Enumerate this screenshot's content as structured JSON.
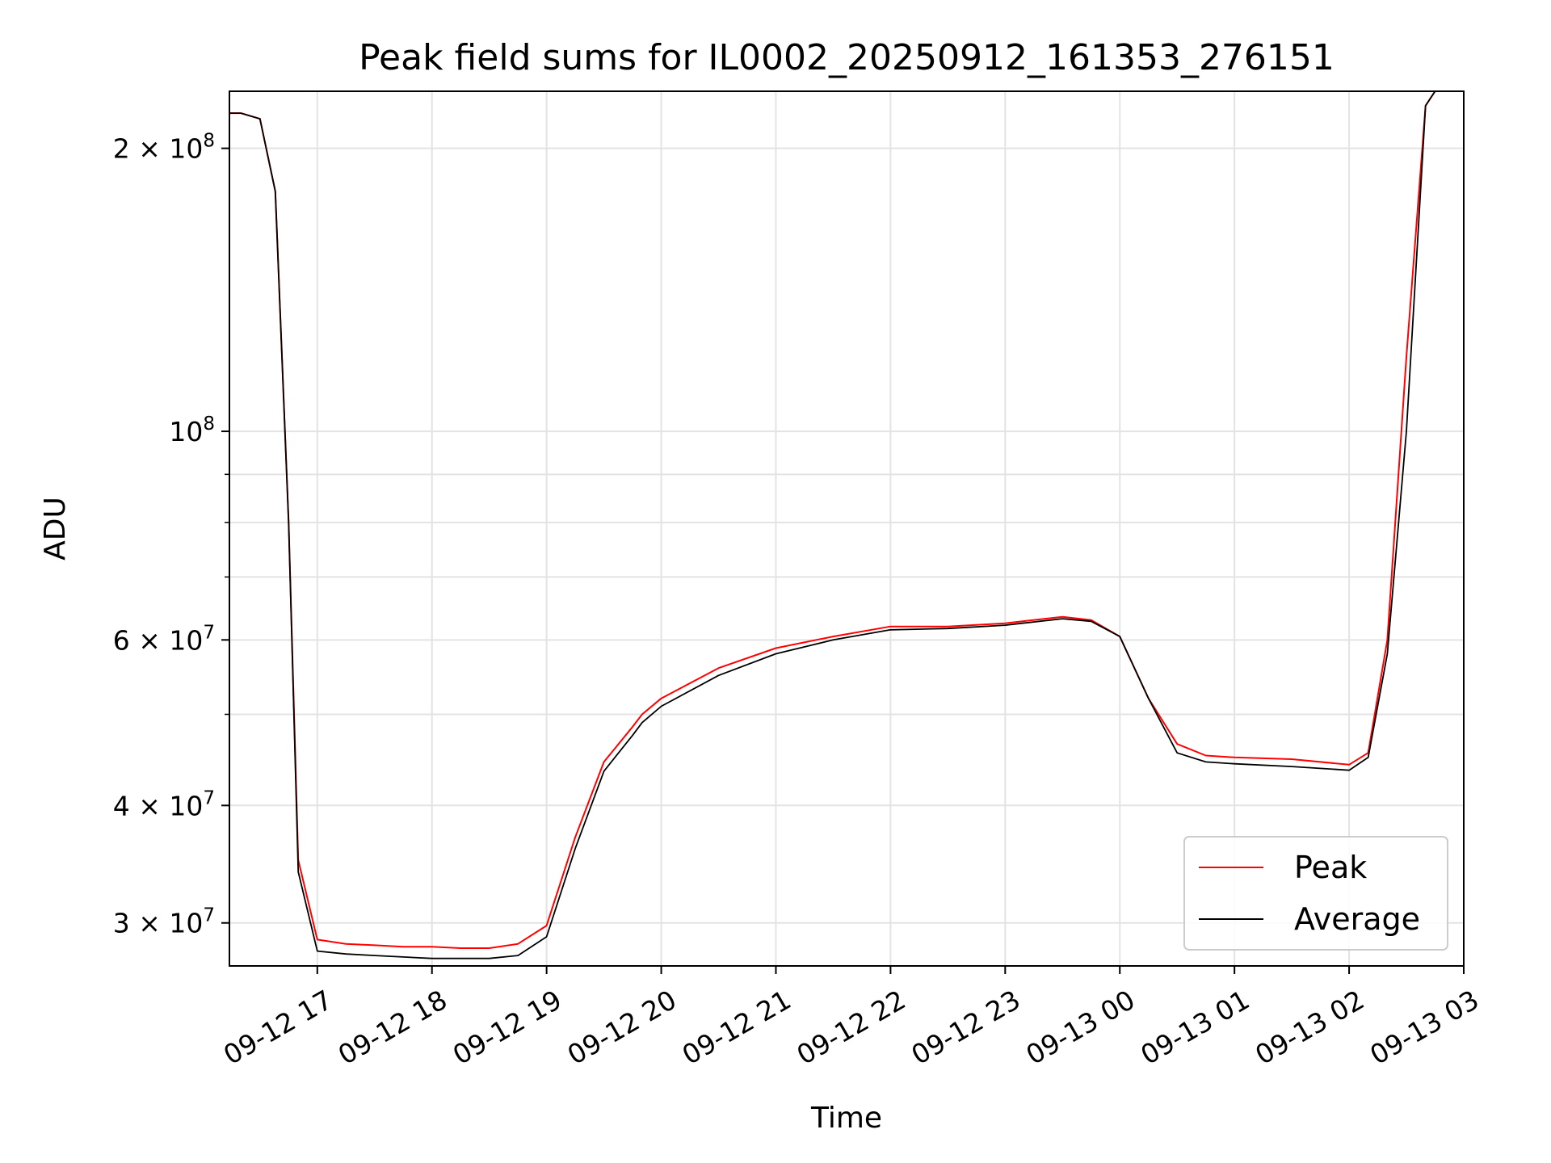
{
  "chart_data": {
    "type": "line",
    "title": "Peak field sums for IL0002_20250912_161353_276151",
    "xlabel": "Time",
    "ylabel": "ADU",
    "y_scale": "log",
    "ylim": [
      27000000,
      230000000
    ],
    "xlim": [
      "09-12 16:14",
      "09-13 03:00"
    ],
    "grid": true,
    "legend_position": "lower right",
    "x_ticks": [
      "09-12 17",
      "09-12 18",
      "09-12 19",
      "09-12 20",
      "09-12 21",
      "09-12 22",
      "09-12 23",
      "09-13 00",
      "09-13 01",
      "09-13 02",
      "09-13 03"
    ],
    "y_ticks": [
      {
        "value": 30000000,
        "label": "3 × 10^7"
      },
      {
        "value": 40000000,
        "label": "4 × 10^7"
      },
      {
        "value": 60000000,
        "label": "6 × 10^7"
      },
      {
        "value": 100000000,
        "label": "10^8"
      },
      {
        "value": 200000000,
        "label": "2 × 10^8"
      }
    ],
    "series": [
      {
        "name": "Peak",
        "color": "#ff0000",
        "x": [
          "09-12 16:14",
          "09-12 16:20",
          "09-12 16:30",
          "09-12 16:38",
          "09-12 16:45",
          "09-12 16:50",
          "09-12 17:00",
          "09-12 17:15",
          "09-12 17:30",
          "09-12 17:45",
          "09-12 18:00",
          "09-12 18:15",
          "09-12 18:30",
          "09-12 18:45",
          "09-12 19:00",
          "09-12 19:15",
          "09-12 19:30",
          "09-12 19:45",
          "09-12 19:50",
          "09-12 20:00",
          "09-12 20:30",
          "09-12 21:00",
          "09-12 21:30",
          "09-12 22:00",
          "09-12 22:30",
          "09-12 23:00",
          "09-12 23:30",
          "09-12 23:45",
          "09-13 00:00",
          "09-13 00:15",
          "09-13 00:30",
          "09-13 00:45",
          "09-13 01:00",
          "09-13 01:30",
          "09-13 02:00",
          "09-13 02:10",
          "09-13 02:20",
          "09-13 02:30",
          "09-13 02:40",
          "09-13 02:45"
        ],
        "y": [
          218000000,
          218000000,
          215000000,
          180000000,
          80000000,
          35000000,
          28800000,
          28500000,
          28400000,
          28300000,
          28300000,
          28200000,
          28200000,
          28500000,
          29800000,
          37000000,
          44500000,
          48500000,
          50000000,
          52000000,
          56000000,
          58800000,
          60500000,
          62000000,
          62000000,
          62500000,
          63500000,
          63000000,
          60500000,
          52000000,
          46500000,
          45200000,
          45000000,
          44800000,
          44200000,
          45500000,
          60000000,
          120000000,
          222000000,
          230000000
        ]
      },
      {
        "name": "Average",
        "color": "#000000",
        "x": [
          "09-12 16:14",
          "09-12 16:20",
          "09-12 16:30",
          "09-12 16:38",
          "09-12 16:45",
          "09-12 16:50",
          "09-12 17:00",
          "09-12 17:15",
          "09-12 17:30",
          "09-12 17:45",
          "09-12 18:00",
          "09-12 18:15",
          "09-12 18:30",
          "09-12 18:45",
          "09-12 19:00",
          "09-12 19:15",
          "09-12 19:30",
          "09-12 19:45",
          "09-12 19:50",
          "09-12 20:00",
          "09-12 20:30",
          "09-12 21:00",
          "09-12 21:30",
          "09-12 22:00",
          "09-12 22:30",
          "09-12 23:00",
          "09-12 23:30",
          "09-12 23:45",
          "09-13 00:00",
          "09-13 00:15",
          "09-13 00:30",
          "09-13 00:45",
          "09-13 01:00",
          "09-13 01:30",
          "09-13 02:00",
          "09-13 02:10",
          "09-13 02:20",
          "09-13 02:30",
          "09-13 02:40",
          "09-13 02:45"
        ],
        "y": [
          218000000,
          218000000,
          215000000,
          180000000,
          80000000,
          34000000,
          28000000,
          27800000,
          27700000,
          27600000,
          27500000,
          27500000,
          27500000,
          27700000,
          29000000,
          36000000,
          43500000,
          47500000,
          49000000,
          51000000,
          55000000,
          58000000,
          60000000,
          61500000,
          61700000,
          62200000,
          63200000,
          62800000,
          60500000,
          52000000,
          45500000,
          44500000,
          44300000,
          44000000,
          43600000,
          45000000,
          58000000,
          100000000,
          222000000,
          230000000
        ]
      }
    ]
  }
}
